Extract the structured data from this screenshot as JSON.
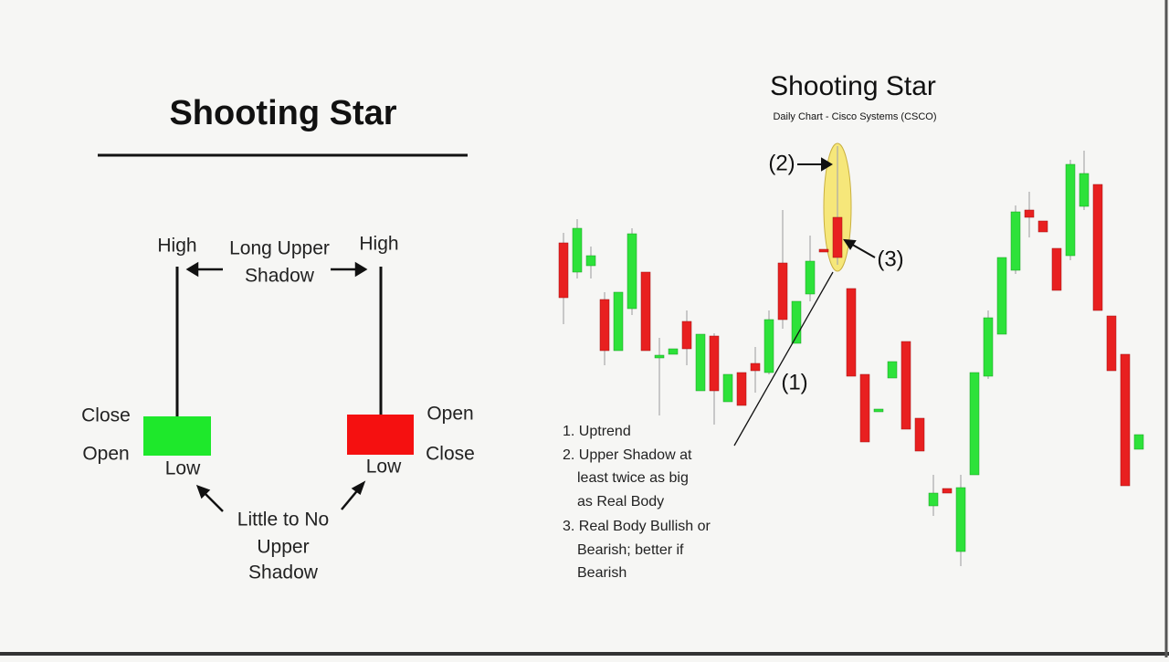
{
  "left": {
    "title": "Shooting Star",
    "green_candle": {
      "high": "High",
      "close": "Close",
      "open": "Open",
      "low": "Low"
    },
    "red_candle": {
      "high": "High",
      "open": "Open",
      "close": "Close",
      "low": "Low"
    },
    "upper_note": [
      "Long Upper",
      "Shadow"
    ],
    "lower_note": [
      "Little to No",
      "Upper",
      "Shadow"
    ]
  },
  "right": {
    "title": "Shooting Star",
    "subtitle": "Daily Chart - Cisco Systems (CSCO)",
    "markers": [
      "(1)",
      "(2)",
      "(3)"
    ],
    "notes": [
      "1. Uptrend",
      "2. Upper Shadow at",
      "least twice as big",
      "as Real Body",
      "3. Real Body Bullish or",
      "Bearish; better if",
      "Bearish"
    ]
  }
}
